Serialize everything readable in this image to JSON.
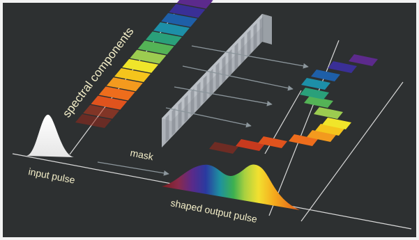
{
  "labels": {
    "spectral": "spectral components",
    "input": "input pulse",
    "mask": "mask",
    "output": "shaped output pulse"
  },
  "colors": {
    "background": "#2d3031",
    "frame": "#f2f2f2",
    "text": "#f3eec8",
    "line": "#d9d9d9",
    "arrow": "#8c969c",
    "mask_glass": "#c9cdd2",
    "input_pulse": "#ffffff",
    "spectrum": [
      "#9a2a1c",
      "#c73a1e",
      "#e0531d",
      "#ee6d1c",
      "#f39a1e",
      "#f5c51c",
      "#f0e52a",
      "#9ccc50",
      "#54b356",
      "#2aa07a",
      "#1d8fa8",
      "#1e5fa8",
      "#3a2f96",
      "#5c2a8c"
    ]
  },
  "spectral_bars": {
    "count": 14
  },
  "output_bars": {
    "count": 14
  }
}
